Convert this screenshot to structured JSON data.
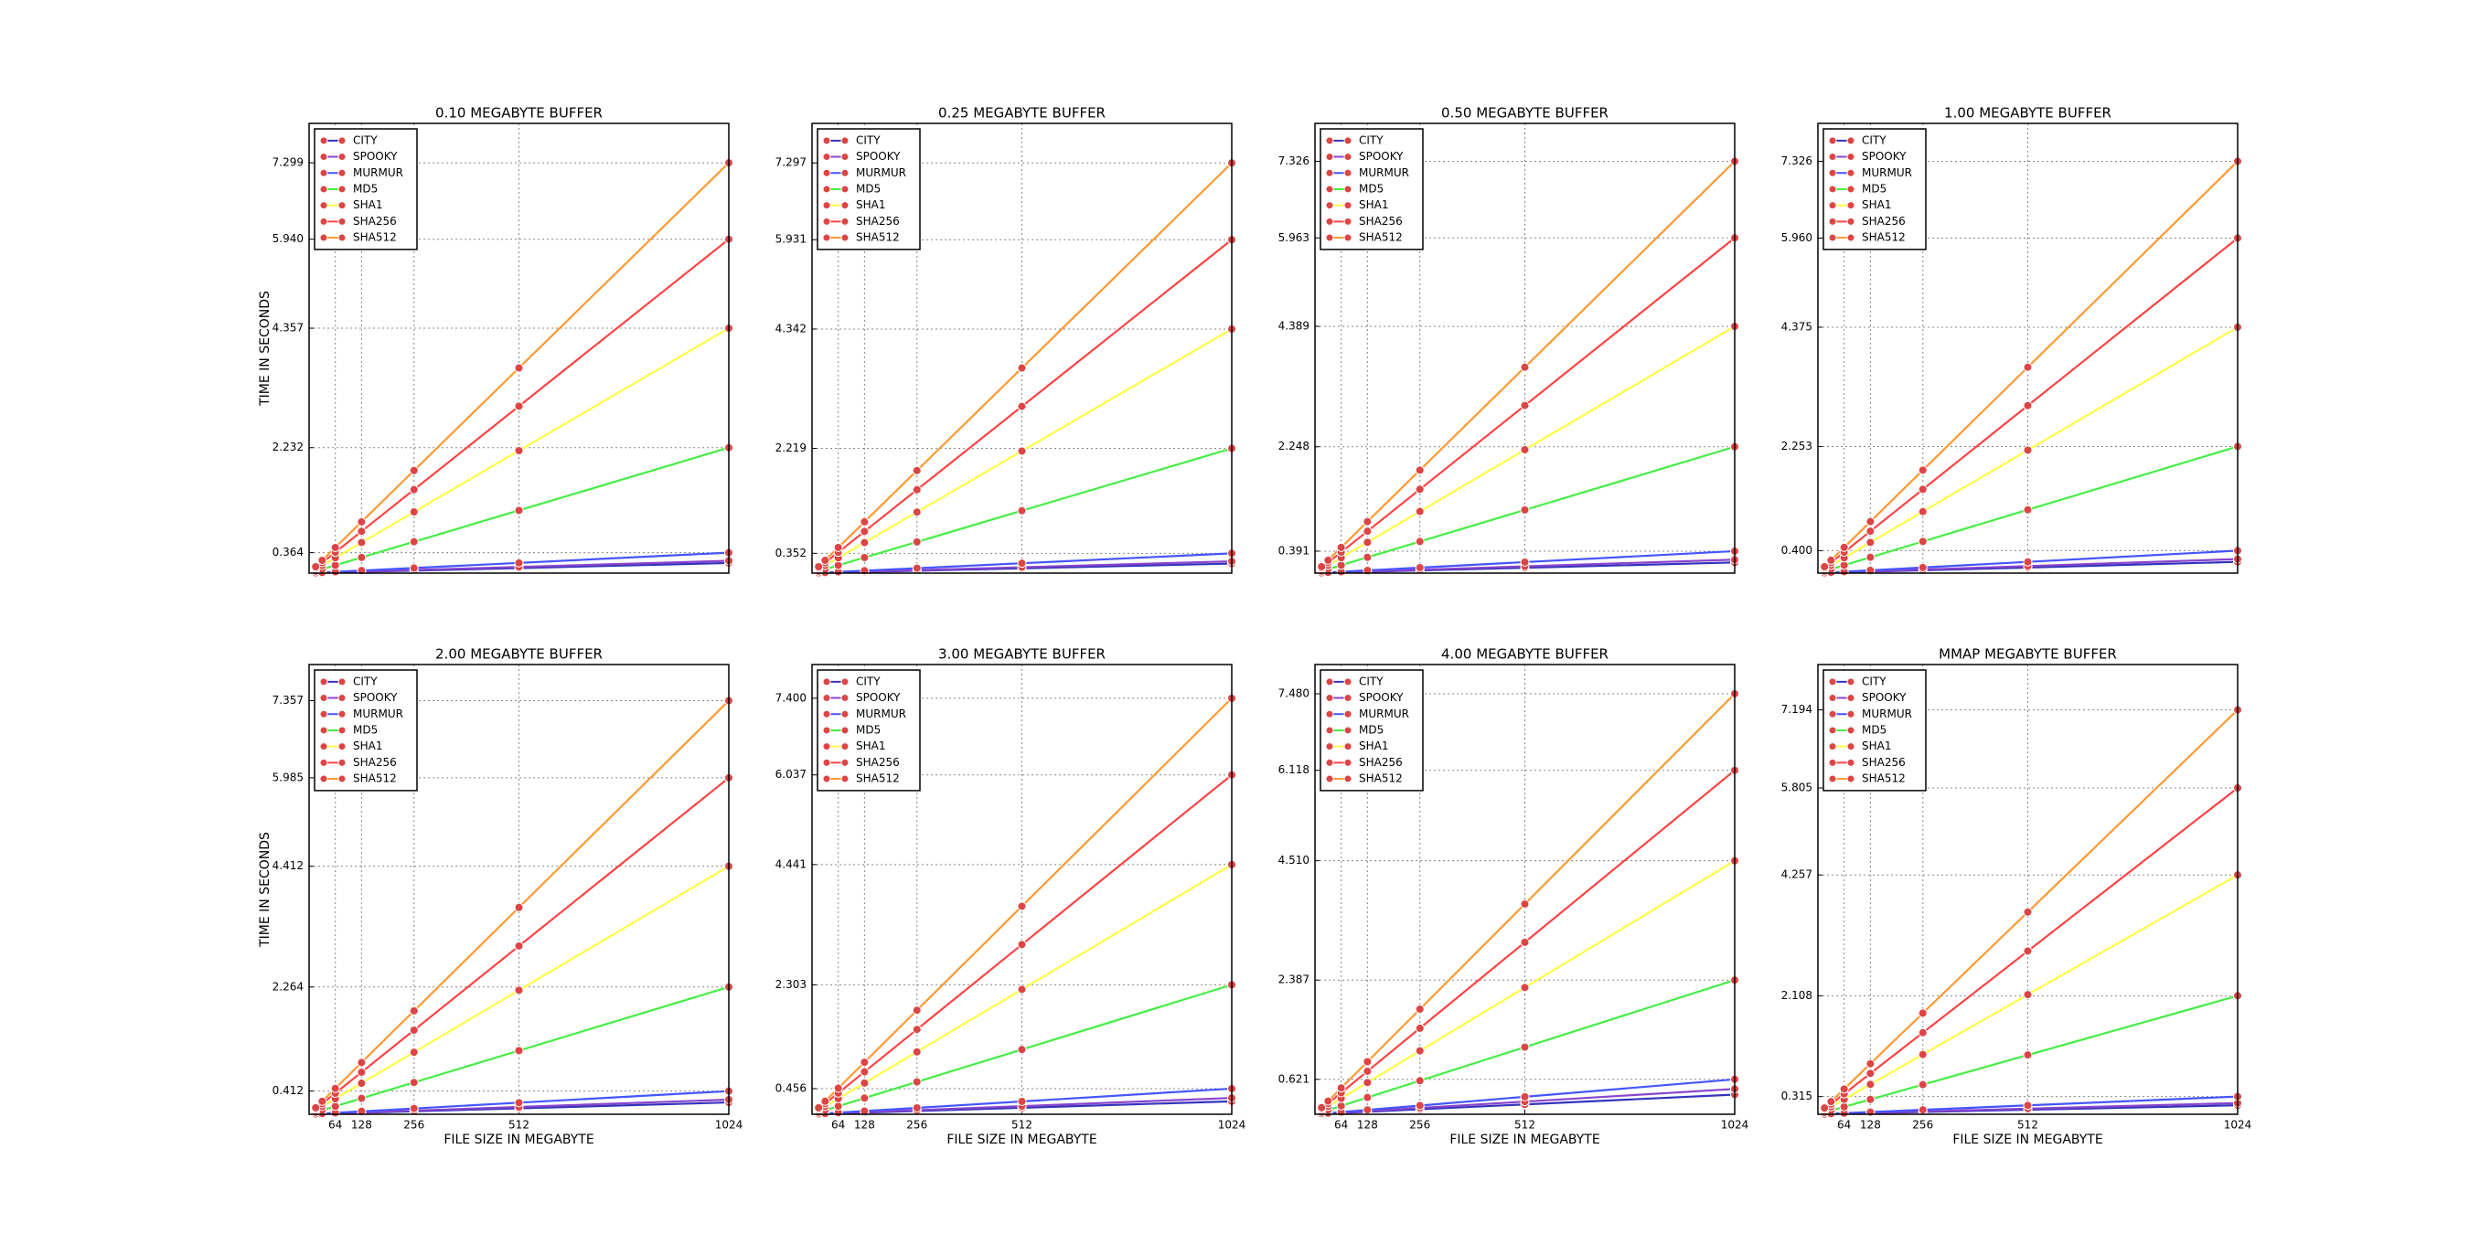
{
  "chart_data": [
    {
      "type": "line",
      "title": "0.10 MEGABYTE BUFFER",
      "ylabel": "TIME IN SECONDS",
      "xtick_labels": false,
      "legend": "upper left",
      "grid": true,
      "marker_color": "#dd4444",
      "x": [
        16,
        32,
        64,
        128,
        256,
        512,
        1024
      ],
      "xlim": [
        0,
        1024
      ],
      "xticks": [
        64,
        128,
        256,
        512,
        1024
      ],
      "ylim": [
        0,
        8
      ],
      "yticks": [
        0.364,
        2.232,
        4.357,
        {
          "value": 5.94,
          "label": "5.940"
        },
        7.299
      ],
      "series": [
        {
          "name": "CITY",
          "color": "#3333bb",
          "values": [
            0.003,
            0.006,
            0.011,
            0.023,
            0.045,
            0.09,
            0.18
          ]
        },
        {
          "name": "SPOOKY",
          "color": "#8844cc",
          "values": [
            0.003,
            0.007,
            0.014,
            0.028,
            0.055,
            0.11,
            0.22
          ]
        },
        {
          "name": "MURMUR",
          "color": "#4455ff",
          "values": [
            0.006,
            0.011,
            0.023,
            0.046,
            0.091,
            0.182,
            0.364
          ]
        },
        {
          "name": "MD5",
          "color": "#44ee44",
          "values": [
            0.035,
            0.07,
            0.14,
            0.279,
            0.558,
            1.116,
            2.232
          ]
        },
        {
          "name": "SHA1",
          "color": "#ffff44",
          "values": [
            0.068,
            0.136,
            0.272,
            0.545,
            1.089,
            2.179,
            4.357
          ]
        },
        {
          "name": "SHA256",
          "color": "#ff4444",
          "values": [
            0.093,
            0.186,
            0.371,
            0.743,
            1.485,
            2.97,
            5.94
          ]
        },
        {
          "name": "SHA512",
          "color": "#ff9933",
          "values": [
            0.114,
            0.228,
            0.456,
            0.912,
            1.825,
            3.65,
            7.299
          ]
        }
      ]
    },
    {
      "type": "line",
      "title": "0.25 MEGABYTE BUFFER",
      "xtick_labels": false,
      "legend": "upper left",
      "grid": true,
      "marker_color": "#dd4444",
      "x": [
        16,
        32,
        64,
        128,
        256,
        512,
        1024
      ],
      "xlim": [
        0,
        1024
      ],
      "xticks": [
        64,
        128,
        256,
        512,
        1024
      ],
      "ylim": [
        0,
        8
      ],
      "yticks": [
        0.352,
        2.219,
        4.342,
        5.931,
        7.297
      ],
      "series": [
        {
          "name": "CITY",
          "color": "#3333bb",
          "values": [
            0.003,
            0.005,
            0.011,
            0.021,
            0.043,
            0.085,
            0.17
          ]
        },
        {
          "name": "SPOOKY",
          "color": "#8844cc",
          "values": [
            0.003,
            0.007,
            0.013,
            0.026,
            0.053,
            0.105,
            0.21
          ]
        },
        {
          "name": "MURMUR",
          "color": "#4455ff",
          "values": [
            0.006,
            0.011,
            0.022,
            0.044,
            0.088,
            0.176,
            0.352
          ]
        },
        {
          "name": "MD5",
          "color": "#44ee44",
          "values": [
            0.035,
            0.069,
            0.139,
            0.277,
            0.555,
            1.11,
            2.219
          ]
        },
        {
          "name": "SHA1",
          "color": "#ffff44",
          "values": [
            0.068,
            0.136,
            0.271,
            0.543,
            1.086,
            2.171,
            4.342
          ]
        },
        {
          "name": "SHA256",
          "color": "#ff4444",
          "values": [
            0.093,
            0.185,
            0.371,
            0.741,
            1.483,
            2.966,
            5.931
          ]
        },
        {
          "name": "SHA512",
          "color": "#ff9933",
          "values": [
            0.114,
            0.228,
            0.456,
            0.912,
            1.824,
            3.649,
            7.297
          ]
        }
      ]
    },
    {
      "type": "line",
      "title": "0.50 MEGABYTE BUFFER",
      "xtick_labels": false,
      "legend": "upper left",
      "grid": true,
      "marker_color": "#dd4444",
      "x": [
        16,
        32,
        64,
        128,
        256,
        512,
        1024
      ],
      "xlim": [
        0,
        1024
      ],
      "xticks": [
        64,
        128,
        256,
        512,
        1024
      ],
      "ylim": [
        0,
        8
      ],
      "yticks": [
        0.391,
        2.248,
        4.389,
        5.963,
        7.326
      ],
      "series": [
        {
          "name": "CITY",
          "color": "#3333bb",
          "values": [
            0.003,
            0.006,
            0.012,
            0.024,
            0.048,
            0.095,
            0.19
          ]
        },
        {
          "name": "SPOOKY",
          "color": "#8844cc",
          "values": [
            0.004,
            0.008,
            0.015,
            0.03,
            0.06,
            0.12,
            0.24
          ]
        },
        {
          "name": "MURMUR",
          "color": "#4455ff",
          "values": [
            0.006,
            0.012,
            0.024,
            0.049,
            0.098,
            0.196,
            0.391
          ]
        },
        {
          "name": "MD5",
          "color": "#44ee44",
          "values": [
            0.035,
            0.07,
            0.141,
            0.281,
            0.562,
            1.124,
            2.248
          ]
        },
        {
          "name": "SHA1",
          "color": "#ffff44",
          "values": [
            0.069,
            0.137,
            0.274,
            0.549,
            1.097,
            2.195,
            4.389
          ]
        },
        {
          "name": "SHA256",
          "color": "#ff4444",
          "values": [
            0.093,
            0.186,
            0.373,
            0.745,
            1.491,
            2.982,
            5.963
          ]
        },
        {
          "name": "SHA512",
          "color": "#ff9933",
          "values": [
            0.114,
            0.229,
            0.458,
            0.916,
            1.832,
            3.663,
            7.326
          ]
        }
      ]
    },
    {
      "type": "line",
      "title": "1.00 MEGABYTE BUFFER",
      "xtick_labels": false,
      "legend": "upper left",
      "grid": true,
      "marker_color": "#dd4444",
      "x": [
        16,
        32,
        64,
        128,
        256,
        512,
        1024
      ],
      "xlim": [
        0,
        1024
      ],
      "xticks": [
        64,
        128,
        256,
        512,
        1024
      ],
      "ylim": [
        0,
        8
      ],
      "yticks": [
        {
          "value": 0.4,
          "label": "0.400"
        },
        2.253,
        4.375,
        {
          "value": 5.96,
          "label": "5.960"
        },
        7.326
      ],
      "series": [
        {
          "name": "CITY",
          "color": "#3333bb",
          "values": [
            0.003,
            0.006,
            0.013,
            0.025,
            0.05,
            0.1,
            0.2
          ]
        },
        {
          "name": "SPOOKY",
          "color": "#8844cc",
          "values": [
            0.004,
            0.008,
            0.016,
            0.031,
            0.063,
            0.125,
            0.25
          ]
        },
        {
          "name": "MURMUR",
          "color": "#4455ff",
          "values": [
            0.006,
            0.013,
            0.025,
            0.05,
            0.1,
            0.2,
            0.4
          ]
        },
        {
          "name": "MD5",
          "color": "#44ee44",
          "values": [
            0.035,
            0.07,
            0.141,
            0.282,
            0.563,
            1.127,
            2.253
          ]
        },
        {
          "name": "SHA1",
          "color": "#ffff44",
          "values": [
            0.068,
            0.137,
            0.273,
            0.547,
            1.094,
            2.188,
            4.375
          ]
        },
        {
          "name": "SHA256",
          "color": "#ff4444",
          "values": [
            0.093,
            0.186,
            0.373,
            0.745,
            1.49,
            2.98,
            5.96
          ]
        },
        {
          "name": "SHA512",
          "color": "#ff9933",
          "values": [
            0.114,
            0.229,
            0.458,
            0.916,
            1.832,
            3.663,
            7.326
          ]
        }
      ]
    },
    {
      "type": "line",
      "title": "2.00 MEGABYTE BUFFER",
      "ylabel": "TIME IN SECONDS",
      "xlabel": "FILE SIZE IN MEGABYTE",
      "xtick_labels": true,
      "legend": "upper left",
      "grid": true,
      "marker_color": "#dd4444",
      "x": [
        16,
        32,
        64,
        128,
        256,
        512,
        1024
      ],
      "xlim": [
        0,
        1024
      ],
      "xticks": [
        64,
        128,
        256,
        512,
        1024
      ],
      "ylim": [
        0,
        8
      ],
      "yticks": [
        0.412,
        2.264,
        4.412,
        5.985,
        7.357
      ],
      "series": [
        {
          "name": "CITY",
          "color": "#3333bb",
          "values": [
            0.003,
            0.007,
            0.013,
            0.026,
            0.053,
            0.105,
            0.21
          ]
        },
        {
          "name": "SPOOKY",
          "color": "#8844cc",
          "values": [
            0.004,
            0.008,
            0.016,
            0.033,
            0.065,
            0.13,
            0.26
          ]
        },
        {
          "name": "MURMUR",
          "color": "#4455ff",
          "values": [
            0.006,
            0.013,
            0.026,
            0.052,
            0.103,
            0.206,
            0.412
          ]
        },
        {
          "name": "MD5",
          "color": "#44ee44",
          "values": [
            0.035,
            0.071,
            0.142,
            0.283,
            0.566,
            1.132,
            2.264
          ]
        },
        {
          "name": "SHA1",
          "color": "#ffff44",
          "values": [
            0.069,
            0.138,
            0.276,
            0.552,
            1.103,
            2.206,
            4.412
          ]
        },
        {
          "name": "SHA256",
          "color": "#ff4444",
          "values": [
            0.094,
            0.187,
            0.374,
            0.748,
            1.496,
            2.993,
            5.985
          ]
        },
        {
          "name": "SHA512",
          "color": "#ff9933",
          "values": [
            0.115,
            0.23,
            0.46,
            0.92,
            1.839,
            3.679,
            7.357
          ]
        }
      ]
    },
    {
      "type": "line",
      "title": "3.00 MEGABYTE BUFFER",
      "xlabel": "FILE SIZE IN MEGABYTE",
      "xtick_labels": true,
      "legend": "upper left",
      "grid": true,
      "marker_color": "#dd4444",
      "x": [
        16,
        32,
        64,
        128,
        256,
        512,
        1024
      ],
      "xlim": [
        0,
        1024
      ],
      "xticks": [
        64,
        128,
        256,
        512,
        1024
      ],
      "ylim": [
        0,
        8
      ],
      "yticks": [
        0.456,
        2.303,
        4.441,
        6.037,
        {
          "value": 7.4,
          "label": "7.400"
        }
      ],
      "series": [
        {
          "name": "CITY",
          "color": "#3333bb",
          "values": [
            0.004,
            0.007,
            0.014,
            0.029,
            0.058,
            0.115,
            0.23
          ]
        },
        {
          "name": "SPOOKY",
          "color": "#8844cc",
          "values": [
            0.005,
            0.009,
            0.018,
            0.036,
            0.073,
            0.145,
            0.29
          ]
        },
        {
          "name": "MURMUR",
          "color": "#4455ff",
          "values": [
            0.007,
            0.014,
            0.029,
            0.057,
            0.114,
            0.228,
            0.456
          ]
        },
        {
          "name": "MD5",
          "color": "#44ee44",
          "values": [
            0.036,
            0.072,
            0.144,
            0.288,
            0.576,
            1.152,
            2.303
          ]
        },
        {
          "name": "SHA1",
          "color": "#ffff44",
          "values": [
            0.069,
            0.139,
            0.278,
            0.555,
            1.11,
            2.221,
            4.441
          ]
        },
        {
          "name": "SHA256",
          "color": "#ff4444",
          "values": [
            0.094,
            0.189,
            0.377,
            0.755,
            1.509,
            3.019,
            6.037
          ]
        },
        {
          "name": "SHA512",
          "color": "#ff9933",
          "values": [
            0.116,
            0.231,
            0.463,
            0.925,
            1.85,
            3.7,
            7.4
          ]
        }
      ]
    },
    {
      "type": "line",
      "title": "4.00 MEGABYTE BUFFER",
      "xlabel": "FILE SIZE IN MEGABYTE",
      "xtick_labels": true,
      "legend": "upper left",
      "grid": true,
      "marker_color": "#dd4444",
      "x": [
        16,
        32,
        64,
        128,
        256,
        512,
        1024
      ],
      "xlim": [
        0,
        1024
      ],
      "xticks": [
        64,
        128,
        256,
        512,
        1024
      ],
      "ylim": [
        0,
        8
      ],
      "yticks": [
        0.621,
        2.387,
        {
          "value": 4.51,
          "label": "4.510"
        },
        6.118,
        {
          "value": 7.48,
          "label": "7.480"
        }
      ],
      "series": [
        {
          "name": "CITY",
          "color": "#3333bb",
          "values": [
            0.005,
            0.011,
            0.022,
            0.044,
            0.088,
            0.175,
            0.35
          ]
        },
        {
          "name": "SPOOKY",
          "color": "#8844cc",
          "values": [
            0.007,
            0.014,
            0.028,
            0.056,
            0.113,
            0.225,
            0.45
          ]
        },
        {
          "name": "MURMUR",
          "color": "#4455ff",
          "values": [
            0.01,
            0.019,
            0.039,
            0.078,
            0.155,
            0.311,
            0.621
          ]
        },
        {
          "name": "MD5",
          "color": "#44ee44",
          "values": [
            0.037,
            0.075,
            0.149,
            0.298,
            0.597,
            1.194,
            2.387
          ]
        },
        {
          "name": "SHA1",
          "color": "#ffff44",
          "values": [
            0.07,
            0.141,
            0.282,
            0.564,
            1.128,
            2.255,
            4.51
          ]
        },
        {
          "name": "SHA256",
          "color": "#ff4444",
          "values": [
            0.096,
            0.191,
            0.382,
            0.765,
            1.53,
            3.059,
            6.118
          ]
        },
        {
          "name": "SHA512",
          "color": "#ff9933",
          "values": [
            0.117,
            0.234,
            0.468,
            0.935,
            1.87,
            3.74,
            7.48
          ]
        }
      ]
    },
    {
      "type": "line",
      "title": "MMAP MEGABYTE BUFFER",
      "xlabel": "FILE SIZE IN MEGABYTE",
      "xtick_labels": true,
      "legend": "upper left",
      "grid": true,
      "marker_color": "#dd4444",
      "x": [
        16,
        32,
        64,
        128,
        256,
        512,
        1024
      ],
      "xlim": [
        0,
        1024
      ],
      "xticks": [
        64,
        128,
        256,
        512,
        1024
      ],
      "ylim": [
        0,
        8
      ],
      "yticks": [
        0.315,
        2.108,
        4.257,
        5.805,
        7.194
      ],
      "series": [
        {
          "name": "CITY",
          "color": "#3333bb",
          "values": [
            0.003,
            0.005,
            0.01,
            0.02,
            0.04,
            0.08,
            0.16
          ]
        },
        {
          "name": "SPOOKY",
          "color": "#8844cc",
          "values": [
            0.003,
            0.006,
            0.013,
            0.025,
            0.05,
            0.1,
            0.2
          ]
        },
        {
          "name": "MURMUR",
          "color": "#4455ff",
          "values": [
            0.005,
            0.01,
            0.02,
            0.039,
            0.079,
            0.158,
            0.315
          ]
        },
        {
          "name": "MD5",
          "color": "#44ee44",
          "values": [
            0.033,
            0.066,
            0.132,
            0.264,
            0.527,
            1.054,
            2.108
          ]
        },
        {
          "name": "SHA1",
          "color": "#ffff44",
          "values": [
            0.067,
            0.133,
            0.266,
            0.532,
            1.064,
            2.129,
            4.257
          ]
        },
        {
          "name": "SHA256",
          "color": "#ff4444",
          "values": [
            0.091,
            0.181,
            0.363,
            0.726,
            1.451,
            2.903,
            5.805
          ]
        },
        {
          "name": "SHA512",
          "color": "#ff9933",
          "values": [
            0.112,
            0.225,
            0.45,
            0.899,
            1.799,
            3.597,
            7.194
          ]
        }
      ]
    }
  ]
}
